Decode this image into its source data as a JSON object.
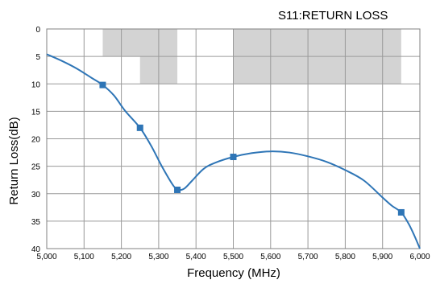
{
  "chart_data": {
    "type": "line",
    "title": "S11:RETURN LOSS",
    "xlabel": "Frequency (MHz)",
    "ylabel": "Return Loss(dB)",
    "xlim": [
      5000,
      6000
    ],
    "ylim": [
      0,
      40
    ],
    "y_inverted": true,
    "grid": true,
    "x_ticks": [
      5000,
      5100,
      5200,
      5300,
      5400,
      5500,
      5600,
      5700,
      5800,
      5900,
      6000
    ],
    "x_tick_labels": [
      "5,000",
      "5,100",
      "5,200",
      "5,300",
      "5,400",
      "5,500",
      "5,600",
      "5,700",
      "5,800",
      "5,900",
      "6,000"
    ],
    "y_ticks": [
      0,
      5,
      10,
      15,
      20,
      25,
      30,
      35,
      40
    ],
    "y_tick_labels": [
      "0",
      "5",
      "10",
      "15",
      "20",
      "25",
      "30",
      "35",
      "40"
    ],
    "line_color": "#2e75b6",
    "spec_color": "#d3d3d3",
    "spec_regions": [
      {
        "x": [
          5150,
          5350
        ],
        "y": [
          0,
          5
        ]
      },
      {
        "x": [
          5250,
          5350
        ],
        "y": [
          5,
          10
        ]
      },
      {
        "x": [
          5500,
          5950
        ],
        "y": [
          0,
          10
        ]
      }
    ],
    "series": [
      {
        "x": [
          5000,
          5040,
          5080,
          5120,
          5150,
          5180,
          5210,
          5250,
          5280,
          5310,
          5340,
          5355,
          5370,
          5390,
          5420,
          5450,
          5500,
          5550,
          5600,
          5650,
          5700,
          5750,
          5800,
          5850,
          5900,
          5925,
          5950,
          5970,
          5985,
          6000
        ],
        "y": [
          4.6,
          5.8,
          7.2,
          8.9,
          10.2,
          12.1,
          14.9,
          18.0,
          21.3,
          25.2,
          28.6,
          29.3,
          29.0,
          27.6,
          25.5,
          24.4,
          23.3,
          22.6,
          22.3,
          22.5,
          23.2,
          24.2,
          25.7,
          27.6,
          30.7,
          32.2,
          33.4,
          35.5,
          37.6,
          40.0
        ]
      }
    ],
    "markers": {
      "x": [
        5150,
        5250,
        5350,
        5500,
        5950
      ],
      "y": [
        10.2,
        18.0,
        29.3,
        23.3,
        33.4
      ]
    }
  }
}
